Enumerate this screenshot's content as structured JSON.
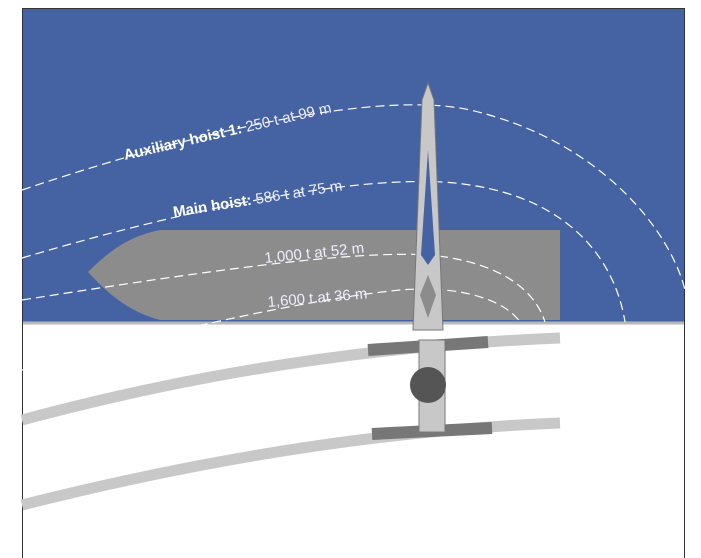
{
  "arcs": [
    {
      "hoist": "Auxiliary hoist 1:",
      "capacity": "250 t at 99 m"
    },
    {
      "hoist": "Main hoist:",
      "capacity": "586 t at 75 m"
    },
    {
      "capacity": "1,000 t at 52 m"
    },
    {
      "capacity": "1,600 t at 36 m"
    }
  ]
}
